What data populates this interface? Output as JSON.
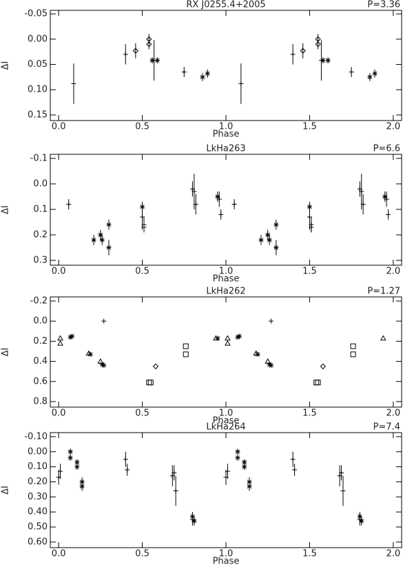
{
  "chart_data": [
    {
      "type": "scatter",
      "title": "RX J0255.4+2005",
      "annotation": "P=3.36",
      "x_label": "Phase",
      "y_label": "ΔI",
      "xlim": [
        -0.05,
        2.05
      ],
      "ylim": [
        0.161,
        -0.057
      ],
      "xticks": [
        {
          "value": 0,
          "label": "0.0"
        },
        {
          "value": 0.5,
          "label": "0.5"
        },
        {
          "value": 1,
          "label": "1.0"
        },
        {
          "value": 1.5,
          "label": "1.5"
        },
        {
          "value": 2,
          "label": "2.0"
        }
      ],
      "yticks": [
        {
          "value": -0.05,
          "label": "-0.05"
        },
        {
          "value": 0,
          "label": "0.00"
        },
        {
          "value": 0.05,
          "label": "0.05"
        },
        {
          "value": 0.1,
          "label": "0.10"
        },
        {
          "value": 0.15,
          "label": "0.15"
        }
      ],
      "series": [
        {
          "marker": "plus",
          "x": [
            0.09,
            0.4,
            0.57,
            0.75,
            1.09,
            1.4,
            1.57,
            1.75
          ],
          "values": [
            0.088,
            0.03,
            0.042,
            0.065,
            0.088,
            0.03,
            0.042,
            0.065
          ],
          "errors": [
            0.04,
            0.02,
            0.04,
            0.01,
            0.04,
            0.02,
            0.04,
            0.01
          ]
        },
        {
          "marker": "diamond",
          "x": [
            0.46,
            0.54,
            0.54,
            1.46,
            1.55,
            1.55
          ],
          "values": [
            0.023,
            0.0,
            0.01,
            0.023,
            0.0,
            0.01
          ],
          "errors": [
            0.015,
            0.01,
            0.01,
            0.015,
            0.01,
            0.01
          ]
        },
        {
          "marker": "asterisk",
          "x": [
            0.56,
            0.59,
            0.86,
            0.89,
            1.58,
            1.61,
            1.86,
            1.89
          ],
          "values": [
            0.042,
            0.042,
            0.075,
            0.068,
            0.042,
            0.042,
            0.075,
            0.068
          ],
          "errors": [
            0.006,
            0.006,
            0.008,
            0.008,
            0.006,
            0.006,
            0.008,
            0.008
          ]
        }
      ]
    },
    {
      "type": "scatter",
      "title": "LkHa263",
      "annotation": "P=6.6",
      "x_label": "Phase",
      "y_label": "ΔI",
      "xlim": [
        -0.05,
        2.05
      ],
      "ylim": [
        0.319,
        -0.116
      ],
      "xticks": [
        {
          "value": 0,
          "label": "0.0"
        },
        {
          "value": 0.5,
          "label": "0.5"
        },
        {
          "value": 1,
          "label": "1.0"
        },
        {
          "value": 1.5,
          "label": "1.5"
        },
        {
          "value": 2,
          "label": "2.0"
        }
      ],
      "yticks": [
        {
          "value": -0.1,
          "label": "-0.1"
        },
        {
          "value": 0,
          "label": "0.0"
        },
        {
          "value": 0.1,
          "label": "0.1"
        },
        {
          "value": 0.2,
          "label": "0.2"
        },
        {
          "value": 0.3,
          "label": "0.3"
        }
      ],
      "series": [
        {
          "marker": "plus",
          "x": [
            0.06,
            0.5,
            0.51,
            0.51,
            0.8,
            0.81,
            0.82,
            0.96,
            0.97,
            1.05,
            1.5,
            1.51,
            1.51,
            1.8,
            1.81,
            1.82,
            1.96,
            1.97
          ],
          "values": [
            0.08,
            0.13,
            0.16,
            0.17,
            0.02,
            0.03,
            0.08,
            0.06,
            0.12,
            0.08,
            0.13,
            0.16,
            0.17,
            0.02,
            0.03,
            0.08,
            0.06,
            0.12
          ],
          "errors": [
            0.02,
            0.05,
            0.03,
            0.02,
            0.03,
            0.07,
            0.04,
            0.03,
            0.02,
            0.02,
            0.05,
            0.03,
            0.02,
            0.03,
            0.07,
            0.04,
            0.03,
            0.02
          ]
        },
        {
          "marker": "asterisk",
          "x": [
            0.21,
            0.25,
            0.26,
            0.3,
            0.3,
            0.5,
            0.95,
            1.21,
            1.25,
            1.26,
            1.3,
            1.3,
            1.5,
            1.95
          ],
          "values": [
            0.22,
            0.2,
            0.22,
            0.16,
            0.25,
            0.09,
            0.05,
            0.22,
            0.2,
            0.22,
            0.16,
            0.25,
            0.09,
            0.05
          ],
          "errors": [
            0.02,
            0.02,
            0.02,
            0.02,
            0.03,
            0.02,
            0.02,
            0.02,
            0.02,
            0.02,
            0.02,
            0.03,
            0.02,
            0.02
          ]
        }
      ]
    },
    {
      "type": "scatter",
      "title": "LkHa262",
      "annotation": "P=1.27",
      "x_label": "Phase",
      "y_label": "ΔI",
      "xlim": [
        -0.05,
        2.05
      ],
      "ylim": [
        0.855,
        -0.241
      ],
      "xticks": [
        {
          "value": 0,
          "label": "0.0"
        },
        {
          "value": 0.5,
          "label": "0.5"
        },
        {
          "value": 1,
          "label": "1.0"
        },
        {
          "value": 1.5,
          "label": "1.5"
        },
        {
          "value": 2,
          "label": "2.0"
        }
      ],
      "yticks": [
        {
          "value": -0.2,
          "label": "-0.2"
        },
        {
          "value": 0,
          "label": "0.0"
        },
        {
          "value": 0.2,
          "label": "0.2"
        },
        {
          "value": 0.4,
          "label": "0.4"
        },
        {
          "value": 0.6,
          "label": "0.6"
        },
        {
          "value": 0.8,
          "label": "0.8"
        }
      ],
      "series": [
        {
          "marker": "triangle",
          "x": [
            0.01,
            0.01,
            0.18,
            0.25,
            0.94,
            1.01,
            1.01,
            1.18,
            1.25,
            1.94
          ],
          "values": [
            0.17,
            0.22,
            0.32,
            0.4,
            0.17,
            0.17,
            0.22,
            0.32,
            0.4,
            0.17
          ]
        },
        {
          "marker": "asterisk",
          "x": [
            0.07,
            0.08,
            0.19,
            0.26,
            0.27,
            0.95,
            1.07,
            1.08,
            1.19,
            1.26,
            1.27
          ],
          "values": [
            0.16,
            0.15,
            0.33,
            0.43,
            0.44,
            0.17,
            0.16,
            0.15,
            0.33,
            0.43,
            0.44
          ]
        },
        {
          "marker": "plus",
          "x": [
            0.27,
            1.27
          ],
          "values": [
            0.0,
            0.0
          ]
        },
        {
          "marker": "square",
          "x": [
            0.54,
            0.55,
            0.76,
            0.76,
            1.54,
            1.55,
            1.76,
            1.76
          ],
          "values": [
            0.61,
            0.61,
            0.25,
            0.33,
            0.61,
            0.61,
            0.25,
            0.33
          ]
        },
        {
          "marker": "diamond",
          "x": [
            0.58,
            1.58
          ],
          "values": [
            0.45,
            0.45
          ]
        }
      ]
    },
    {
      "type": "scatter",
      "title": "LkHa264",
      "annotation": "P=7.4",
      "x_label": "Phase",
      "y_label": "ΔI",
      "xlim": [
        -0.05,
        2.05
      ],
      "ylim": [
        0.637,
        -0.127
      ],
      "xticks": [
        {
          "value": 0,
          "label": "0.0"
        },
        {
          "value": 0.5,
          "label": "0.5"
        },
        {
          "value": 1,
          "label": "1.0"
        },
        {
          "value": 1.5,
          "label": "1.5"
        },
        {
          "value": 2,
          "label": "2.0"
        }
      ],
      "yticks": [
        {
          "value": -0.1,
          "label": "-0.10"
        },
        {
          "value": 0,
          "label": "0.00"
        },
        {
          "value": 0.1,
          "label": "0.10"
        },
        {
          "value": 0.2,
          "label": "0.20"
        },
        {
          "value": 0.3,
          "label": "0.30"
        },
        {
          "value": 0.4,
          "label": "0.40"
        },
        {
          "value": 0.5,
          "label": "0.50"
        },
        {
          "value": 0.6,
          "label": "0.60"
        }
      ],
      "series": [
        {
          "marker": "plus",
          "x": [
            0.0,
            0.01,
            0.4,
            0.41,
            0.68,
            0.69,
            0.7,
            0.8,
            1.0,
            1.01,
            1.4,
            1.41,
            1.68,
            1.69,
            1.7,
            1.8
          ],
          "values": [
            0.17,
            0.13,
            0.05,
            0.12,
            0.16,
            0.14,
            0.26,
            0.45,
            0.17,
            0.13,
            0.05,
            0.12,
            0.16,
            0.14,
            0.26,
            0.45
          ],
          "errors": [
            0.05,
            0.05,
            0.05,
            0.04,
            0.07,
            0.05,
            0.1,
            0.04,
            0.05,
            0.05,
            0.05,
            0.04,
            0.07,
            0.05,
            0.1,
            0.04
          ]
        },
        {
          "marker": "asterisk",
          "x": [
            0.07,
            0.07,
            0.11,
            0.11,
            0.14,
            0.14,
            0.8,
            0.81,
            1.07,
            1.07,
            1.11,
            1.11,
            1.14,
            1.14,
            1.8,
            1.81
          ],
          "values": [
            0.0,
            0.04,
            0.07,
            0.1,
            0.2,
            0.23,
            0.43,
            0.46,
            0.0,
            0.04,
            0.07,
            0.1,
            0.2,
            0.23,
            0.43,
            0.46
          ],
          "errors": [
            0.02,
            0.02,
            0.02,
            0.02,
            0.03,
            0.03,
            0.03,
            0.03,
            0.02,
            0.02,
            0.02,
            0.02,
            0.03,
            0.03,
            0.03,
            0.03
          ]
        }
      ]
    }
  ]
}
